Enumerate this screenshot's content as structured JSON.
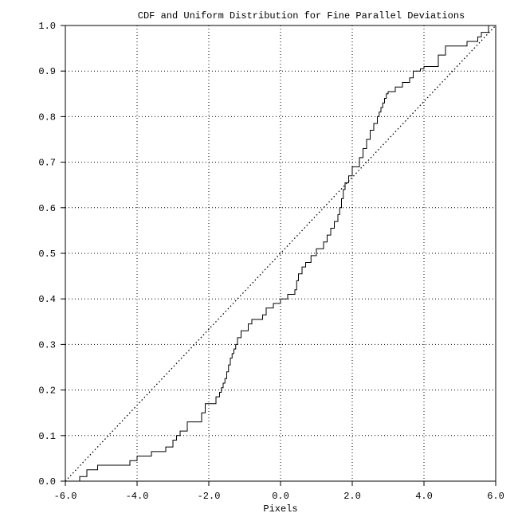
{
  "chart_data": {
    "type": "line",
    "title": "CDF and Uniform Distribution for Fine Parallel Deviations",
    "xlabel": "Pixels",
    "ylabel": "",
    "xlim": [
      -6.0,
      6.0
    ],
    "ylim": [
      0.0,
      1.0
    ],
    "x_ticks": [
      -6.0,
      -4.0,
      -2.0,
      0.0,
      2.0,
      4.0,
      6.0
    ],
    "x_tick_labels": [
      "-6.0",
      "-4.0",
      "-2.0",
      "0.0",
      "2.0",
      "4.0",
      "6.0"
    ],
    "y_ticks": [
      0.0,
      0.1,
      0.2,
      0.3,
      0.4,
      0.5,
      0.6,
      0.7,
      0.8,
      0.9,
      1.0
    ],
    "y_tick_labels": [
      "0.0",
      "0.1",
      "0.2",
      "0.3",
      "0.4",
      "0.5",
      "0.6",
      "0.7",
      "0.8",
      "0.9",
      "1.0"
    ],
    "grid": true,
    "grid_style": "dotted",
    "series": [
      {
        "style": "solid-step",
        "color": "#000000",
        "x": [
          -6.0,
          -5.6,
          -5.4,
          -5.1,
          -4.2,
          -4.0,
          -3.6,
          -3.2,
          -3.0,
          -2.9,
          -2.8,
          -2.6,
          -2.2,
          -2.1,
          -1.8,
          -1.7,
          -1.65,
          -1.6,
          -1.55,
          -1.5,
          -1.45,
          -1.4,
          -1.35,
          -1.3,
          -1.25,
          -1.2,
          -1.1,
          -0.9,
          -0.8,
          -0.5,
          -0.4,
          -0.2,
          0.0,
          0.2,
          0.4,
          0.45,
          0.5,
          0.6,
          0.7,
          0.85,
          1.0,
          1.2,
          1.3,
          1.4,
          1.5,
          1.6,
          1.65,
          1.7,
          1.75,
          1.8,
          1.9,
          2.0,
          2.2,
          2.3,
          2.4,
          2.5,
          2.6,
          2.7,
          2.75,
          2.8,
          2.85,
          2.9,
          2.95,
          3.0,
          3.2,
          3.4,
          3.6,
          3.7,
          3.9,
          4.0,
          4.4,
          4.6,
          5.2,
          5.5,
          5.6,
          5.8
        ],
        "y": [
          0.0,
          0.01,
          0.025,
          0.035,
          0.045,
          0.055,
          0.065,
          0.075,
          0.09,
          0.1,
          0.11,
          0.13,
          0.15,
          0.17,
          0.185,
          0.195,
          0.205,
          0.215,
          0.225,
          0.24,
          0.255,
          0.27,
          0.28,
          0.29,
          0.3,
          0.315,
          0.33,
          0.345,
          0.355,
          0.365,
          0.38,
          0.39,
          0.4,
          0.41,
          0.42,
          0.44,
          0.455,
          0.47,
          0.48,
          0.495,
          0.51,
          0.525,
          0.54,
          0.555,
          0.57,
          0.585,
          0.6,
          0.62,
          0.64,
          0.655,
          0.67,
          0.69,
          0.71,
          0.73,
          0.75,
          0.77,
          0.785,
          0.8,
          0.81,
          0.82,
          0.83,
          0.84,
          0.85,
          0.855,
          0.865,
          0.875,
          0.885,
          0.9,
          0.905,
          0.91,
          0.935,
          0.955,
          0.965,
          0.975,
          0.985,
          1.0
        ]
      },
      {
        "style": "dotted",
        "color": "#000000",
        "x": [
          -6.0,
          6.0
        ],
        "y": [
          0.0,
          1.0
        ]
      }
    ]
  }
}
